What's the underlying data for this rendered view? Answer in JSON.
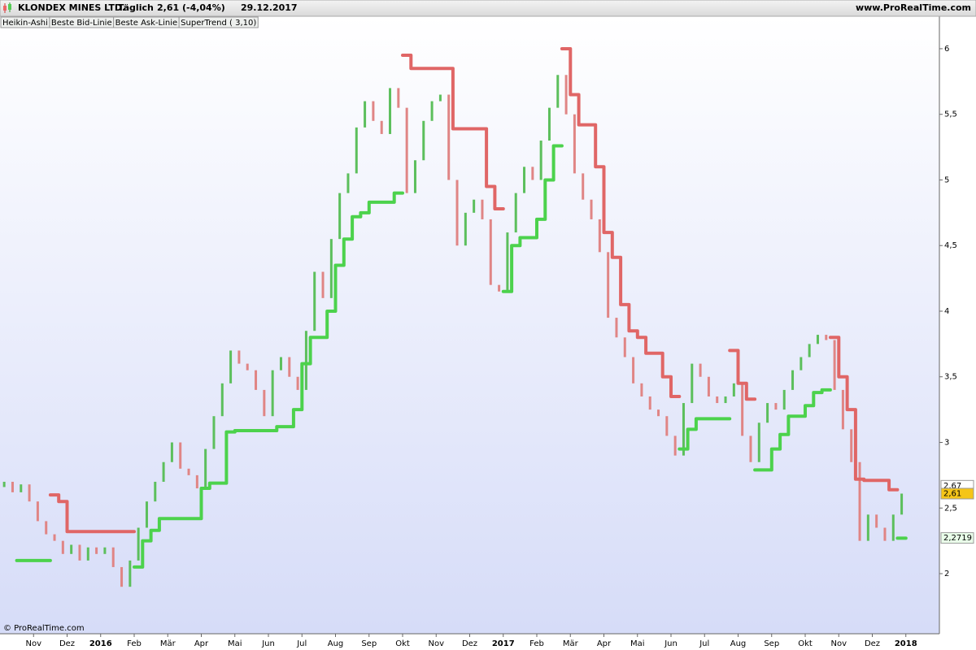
{
  "header": {
    "name": "KLONDEX MINES LTD.",
    "period": "Täglich",
    "quote": "2,61 (-4,04%)",
    "date": "29.12.2017",
    "site": "www.ProRealTime.com"
  },
  "footer": "© ProRealTime.com",
  "chart_data": {
    "type": "candlestick",
    "legend": [
      {
        "name": "Heikin-Ashi",
        "color": "#000000"
      },
      {
        "name": "Beste Bid-Linie",
        "color": "#5cbf5c"
      },
      {
        "name": "Beste Ask-Linie",
        "color": "#e06666"
      },
      {
        "name": "SuperTrend ( 3,10)",
        "color": "#3aa83a"
      }
    ],
    "categories": [
      null,
      null,
      null,
      null,
      "Nov",
      null,
      null,
      null,
      "Dez",
      null,
      null,
      null,
      "2016",
      null,
      null,
      null,
      "Feb",
      null,
      null,
      null,
      "Mär",
      null,
      null,
      null,
      "Apr",
      null,
      null,
      null,
      "Mai",
      null,
      null,
      null,
      "Jun",
      null,
      null,
      null,
      "Jul",
      null,
      null,
      null,
      "Aug",
      null,
      null,
      null,
      "Sep",
      null,
      null,
      null,
      "Okt",
      null,
      null,
      null,
      "Nov",
      null,
      null,
      null,
      "Dez",
      null,
      null,
      null,
      "2017",
      null,
      null,
      null,
      "Feb",
      null,
      null,
      null,
      "Mär",
      null,
      null,
      null,
      "Apr",
      null,
      null,
      null,
      "Mai",
      null,
      null,
      null,
      "Jun",
      null,
      null,
      null,
      "Jul",
      null,
      null,
      null,
      "Aug",
      null,
      null,
      null,
      "Sep",
      null,
      null,
      null,
      "Okt",
      null,
      null,
      null,
      "Nov",
      null,
      null,
      null,
      "Dez",
      null,
      null,
      null,
      "2018",
      null,
      null,
      null
    ],
    "candles": {
      "up_color": "#5cbf5c",
      "down_color": "#e08585",
      "open": [
        2.66,
        2.7,
        2.62,
        2.68,
        2.55,
        2.4,
        2.3,
        2.25,
        2.15,
        2.22,
        2.1,
        2.2,
        2.15,
        2.2,
        2.05,
        1.9,
        2.1,
        2.35,
        2.55,
        2.7,
        2.85,
        3.0,
        2.8,
        2.75,
        2.65,
        2.95,
        3.2,
        3.45,
        3.7,
        3.6,
        3.55,
        3.4,
        3.2,
        3.55,
        3.65,
        3.5,
        3.4,
        3.85,
        4.3,
        4.1,
        4.55,
        4.9,
        5.05,
        5.4,
        5.6,
        5.45,
        5.35,
        5.7,
        5.55,
        4.9,
        5.15,
        5.45,
        5.6,
        5.65,
        5.0,
        4.5,
        4.75,
        4.85,
        4.7,
        4.2,
        4.15,
        4.6,
        4.9,
        5.1,
        5.0,
        5.3,
        5.55,
        5.8,
        5.5,
        5.05,
        4.85,
        4.7,
        4.45,
        3.95,
        3.8,
        3.65,
        3.45,
        3.35,
        3.25,
        3.2,
        3.05,
        2.9,
        3.3,
        3.6,
        3.5,
        3.35,
        3.3,
        3.35,
        3.45,
        3.05,
        2.85,
        3.15,
        3.3,
        3.25,
        3.4,
        3.55,
        3.65,
        3.75,
        3.82,
        3.78,
        3.4,
        3.1,
        2.85,
        2.25,
        2.45,
        2.35,
        2.25,
        2.45,
        null,
        null,
        null,
        null
      ],
      "close": [
        2.7,
        2.62,
        2.68,
        2.55,
        2.4,
        2.3,
        2.25,
        2.15,
        2.22,
        2.1,
        2.2,
        2.15,
        2.2,
        2.05,
        1.9,
        2.1,
        2.35,
        2.55,
        2.7,
        2.85,
        3.0,
        2.8,
        2.75,
        2.65,
        2.95,
        3.2,
        3.45,
        3.7,
        3.6,
        3.55,
        3.4,
        3.2,
        3.55,
        3.65,
        3.5,
        3.4,
        3.85,
        4.3,
        4.1,
        4.55,
        4.9,
        5.05,
        5.4,
        5.6,
        5.45,
        5.35,
        5.7,
        5.55,
        4.9,
        5.15,
        5.45,
        5.6,
        5.65,
        5.0,
        4.5,
        4.75,
        4.85,
        4.7,
        4.2,
        4.15,
        4.6,
        4.9,
        5.1,
        5.0,
        5.3,
        5.55,
        5.8,
        5.5,
        5.05,
        4.85,
        4.7,
        4.45,
        3.95,
        3.8,
        3.65,
        3.45,
        3.35,
        3.25,
        3.2,
        3.05,
        2.9,
        3.3,
        3.6,
        3.5,
        3.35,
        3.3,
        3.35,
        3.45,
        3.05,
        2.85,
        3.15,
        3.3,
        3.25,
        3.4,
        3.55,
        3.65,
        3.75,
        3.82,
        3.78,
        3.4,
        3.1,
        2.85,
        2.25,
        2.45,
        2.35,
        2.25,
        2.45,
        2.61,
        null,
        null,
        null,
        null
      ]
    },
    "supertrend": {
      "support_color": "#4cd24c",
      "resistance_color": "#e06666",
      "support": [
        null,
        null,
        2.1,
        2.1,
        2.1,
        2.1,
        null,
        null,
        null,
        null,
        null,
        null,
        null,
        null,
        null,
        null,
        2.05,
        2.25,
        2.33,
        2.42,
        2.42,
        2.42,
        2.42,
        2.42,
        2.65,
        2.69,
        2.69,
        3.08,
        3.09,
        3.09,
        3.09,
        3.09,
        3.09,
        3.12,
        3.12,
        3.25,
        3.6,
        3.8,
        3.8,
        4.0,
        4.35,
        4.55,
        4.72,
        4.75,
        4.83,
        4.83,
        4.83,
        4.9,
        null,
        null,
        null,
        null,
        null,
        null,
        null,
        null,
        null,
        null,
        null,
        null,
        4.15,
        4.5,
        4.56,
        4.56,
        4.7,
        5.0,
        5.26,
        null,
        null,
        null,
        null,
        null,
        null,
        null,
        null,
        null,
        null,
        null,
        null,
        null,
        null,
        2.95,
        3.1,
        3.18,
        3.18,
        3.18,
        3.18,
        null,
        null,
        null,
        2.79,
        2.79,
        2.95,
        3.06,
        3.2,
        3.2,
        3.28,
        3.38,
        3.4,
        null,
        null,
        null,
        null,
        null,
        null,
        null,
        null,
        2.27,
        null,
        null,
        null,
        null
      ],
      "resistance": [
        null,
        null,
        null,
        null,
        null,
        null,
        2.6,
        2.55,
        2.32,
        2.32,
        2.32,
        2.32,
        2.32,
        2.32,
        2.32,
        2.32,
        null,
        null,
        null,
        null,
        null,
        null,
        null,
        null,
        null,
        null,
        null,
        null,
        null,
        null,
        null,
        null,
        null,
        null,
        null,
        null,
        null,
        null,
        null,
        null,
        null,
        null,
        null,
        null,
        null,
        null,
        null,
        null,
        5.95,
        5.85,
        5.85,
        5.85,
        5.85,
        5.85,
        5.39,
        5.39,
        5.39,
        5.39,
        4.95,
        4.78,
        null,
        null,
        null,
        null,
        null,
        null,
        null,
        6.0,
        5.65,
        5.42,
        5.42,
        5.1,
        4.6,
        4.41,
        4.05,
        3.85,
        3.8,
        3.68,
        3.68,
        3.5,
        3.35,
        null,
        null,
        null,
        null,
        null,
        null,
        3.7,
        3.45,
        3.33,
        null,
        null,
        null,
        null,
        null,
        null,
        null,
        null,
        null,
        3.8,
        3.5,
        3.25,
        2.72,
        2.71,
        2.71,
        2.71,
        2.64,
        null,
        null,
        null,
        null,
        null
      ]
    },
    "price_markers": [
      {
        "value": 2.67,
        "label": "2,67",
        "color": "#ffffff"
      },
      {
        "value": 2.61,
        "label": "2,61",
        "color": "#f5c518"
      },
      {
        "value": 2.2719,
        "label": "2,2719",
        "color": "#eaffea"
      }
    ],
    "ylim": [
      1.542,
      6.235
    ],
    "yticks": [
      2,
      {
        "value": 2.5,
        "label": "2,5"
      },
      3,
      {
        "value": 3.5,
        "label": "3,5"
      },
      4,
      {
        "value": 4.5,
        "label": "4,5"
      },
      5,
      {
        "value": 5.5,
        "label": "5,5"
      },
      6
    ],
    "grid": false
  }
}
